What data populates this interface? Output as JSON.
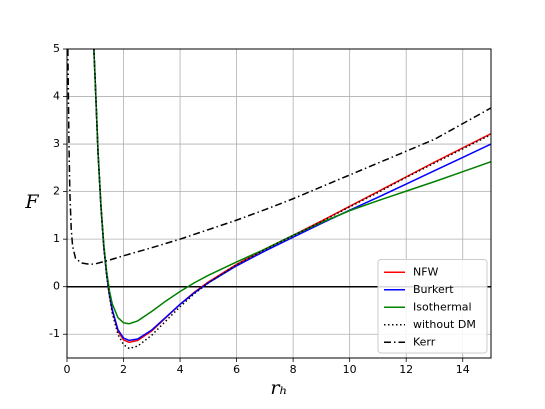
{
  "chart_data": {
    "type": "line",
    "xlabel": "rₕ",
    "ylabel": "F",
    "xlim": [
      0,
      15
    ],
    "ylim": [
      -1.5,
      5
    ],
    "xticks": [
      0,
      2,
      4,
      6,
      8,
      10,
      12,
      14
    ],
    "yticks": [
      -1,
      0,
      1,
      2,
      3,
      4,
      5
    ],
    "grid": true,
    "hline": 0,
    "legend": "lower right",
    "series": [
      {
        "name": "NFW",
        "color": "#ff0000",
        "linestyle": "solid",
        "x": [
          0.95,
          1.0,
          1.1,
          1.2,
          1.3,
          1.4,
          1.5,
          1.6,
          1.8,
          2.0,
          2.2,
          2.5,
          3,
          3.5,
          4,
          4.5,
          5,
          6,
          7,
          8,
          9,
          10,
          11,
          12,
          13,
          14,
          15
        ],
        "values": [
          5,
          4.3,
          2.8,
          1.7,
          0.85,
          0.27,
          -0.17,
          -0.5,
          -0.93,
          -1.12,
          -1.17,
          -1.13,
          -0.93,
          -0.65,
          -0.37,
          -0.12,
          0.1,
          0.47,
          0.79,
          1.08,
          1.38,
          1.69,
          2.0,
          2.31,
          2.62,
          2.92,
          3.22
        ]
      },
      {
        "name": "Burkert",
        "color": "#0000ff",
        "linestyle": "solid",
        "x": [
          0.95,
          1.0,
          1.1,
          1.2,
          1.3,
          1.4,
          1.5,
          1.6,
          1.8,
          2.0,
          2.2,
          2.5,
          3,
          3.5,
          4,
          4.5,
          5,
          6,
          7,
          8,
          9,
          10,
          11,
          12,
          13,
          14,
          15
        ],
        "values": [
          5,
          4.3,
          2.8,
          1.7,
          0.85,
          0.27,
          -0.16,
          -0.48,
          -0.9,
          -1.08,
          -1.13,
          -1.1,
          -0.91,
          -0.64,
          -0.37,
          -0.13,
          0.08,
          0.44,
          0.75,
          1.04,
          1.33,
          1.61,
          1.88,
          2.16,
          2.44,
          2.72,
          3.0
        ]
      },
      {
        "name": "Isothermal",
        "color": "#008000",
        "linestyle": "solid",
        "x": [
          0.95,
          1.0,
          1.1,
          1.2,
          1.3,
          1.4,
          1.5,
          1.6,
          1.8,
          2.0,
          2.2,
          2.5,
          3,
          3.5,
          4,
          4.5,
          5,
          6,
          7,
          8,
          9,
          10,
          11,
          12,
          13,
          14,
          15
        ],
        "values": [
          5,
          4.3,
          2.8,
          1.72,
          0.9,
          0.33,
          -0.08,
          -0.36,
          -0.65,
          -0.76,
          -0.78,
          -0.72,
          -0.52,
          -0.3,
          -0.1,
          0.08,
          0.24,
          0.52,
          0.79,
          1.08,
          1.35,
          1.6,
          1.81,
          2.01,
          2.21,
          2.42,
          2.63
        ]
      },
      {
        "name": "without DM",
        "color": "#000000",
        "linestyle": "dotted",
        "x": [
          0.95,
          1.0,
          1.1,
          1.2,
          1.3,
          1.4,
          1.5,
          1.6,
          1.8,
          2.0,
          2.2,
          2.5,
          3,
          3.5,
          4,
          4.5,
          5,
          6,
          7,
          8,
          9,
          10,
          11,
          12,
          13,
          14,
          15
        ],
        "values": [
          5,
          4.3,
          2.8,
          1.7,
          0.85,
          0.25,
          -0.2,
          -0.55,
          -1.0,
          -1.22,
          -1.3,
          -1.25,
          -1.02,
          -0.72,
          -0.42,
          -0.15,
          0.08,
          0.46,
          0.78,
          1.07,
          1.37,
          1.68,
          1.98,
          2.3,
          2.6,
          2.9,
          3.2
        ]
      },
      {
        "name": "Kerr",
        "color": "#000000",
        "linestyle": "dashdot",
        "x": [
          0.03,
          0.05,
          0.07,
          0.1,
          0.15,
          0.2,
          0.3,
          0.5,
          0.8,
          1.0,
          1.5,
          2,
          3,
          4,
          5,
          6,
          7,
          8,
          9,
          10,
          11,
          12,
          13,
          14,
          15
        ],
        "values": [
          5,
          4.0,
          3.0,
          2.0,
          1.2,
          0.85,
          0.6,
          0.5,
          0.47,
          0.48,
          0.56,
          0.65,
          0.82,
          1.0,
          1.2,
          1.4,
          1.62,
          1.85,
          2.1,
          2.35,
          2.6,
          2.85,
          3.1,
          3.43,
          3.76
        ]
      }
    ]
  }
}
